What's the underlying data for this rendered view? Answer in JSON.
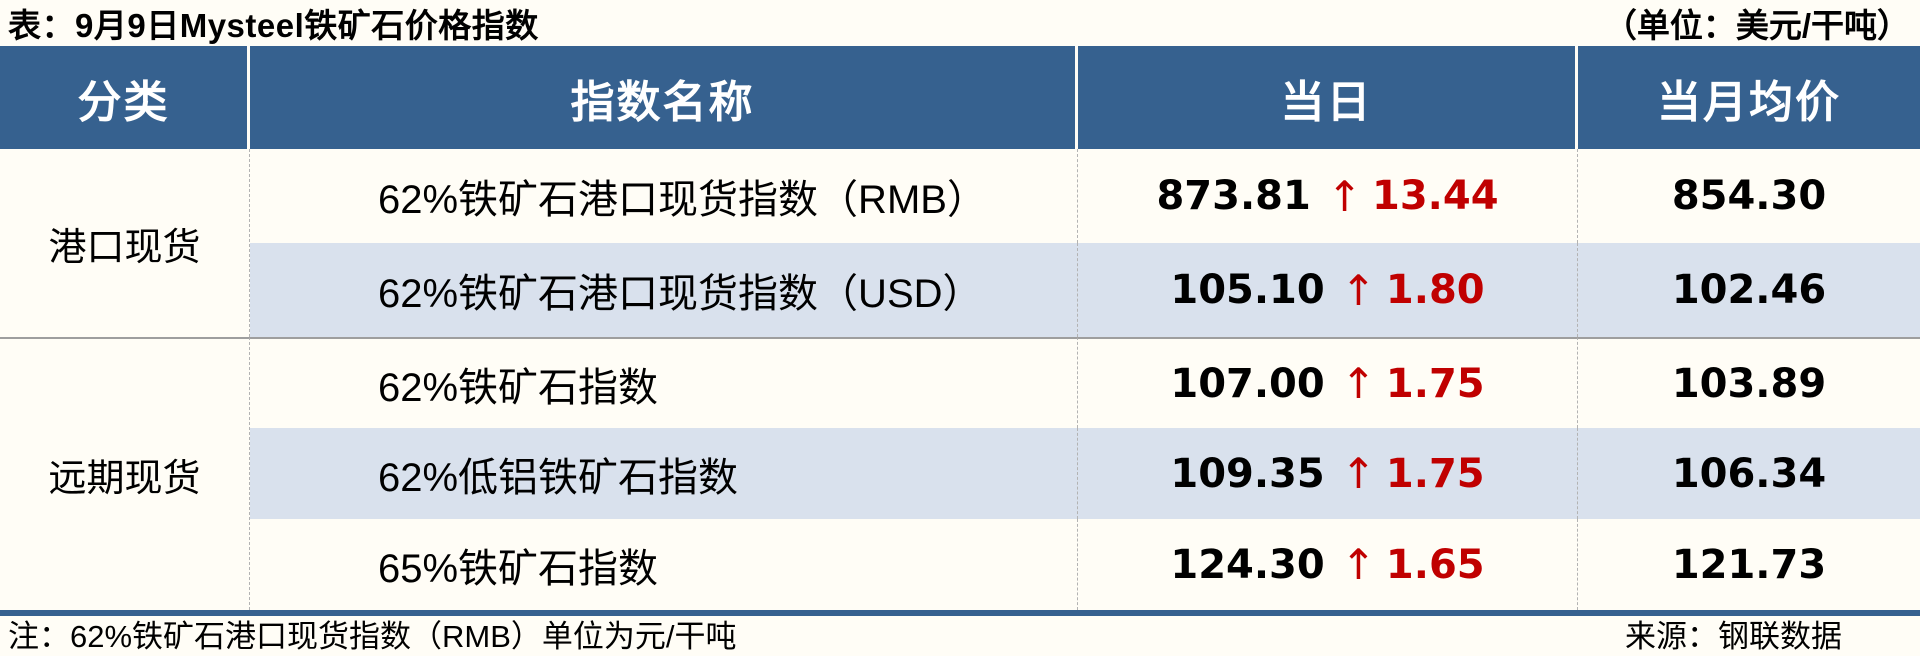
{
  "title": "表：9月9日Mysteel铁矿石价格指数",
  "unit_note": "（单位：美元/干吨）",
  "colors": {
    "header_bg": "#36618f",
    "alt_row_bg": "#d9e1ed",
    "up_red": "#c00000",
    "page_bg": "#fffdf6"
  },
  "table": {
    "headers": [
      "分类",
      "指数名称",
      "当日",
      "当月均价"
    ],
    "groups": [
      {
        "category": "港口现货",
        "rows": [
          {
            "name": "62%铁矿石港口现货指数（RMB）",
            "daily": "873.81",
            "arrow": "↑",
            "change": "13.44",
            "monthly_avg": "854.30"
          },
          {
            "name": "62%铁矿石港口现货指数（USD）",
            "daily": "105.10",
            "arrow": "↑",
            "change": "1.80",
            "monthly_avg": "102.46"
          }
        ]
      },
      {
        "category": "远期现货",
        "rows": [
          {
            "name": "62%铁矿石指数",
            "daily": "107.00",
            "arrow": "↑",
            "change": "1.75",
            "monthly_avg": "103.89"
          },
          {
            "name": "62%低铝铁矿石指数",
            "daily": "109.35",
            "arrow": "↑",
            "change": "1.75",
            "monthly_avg": "106.34"
          },
          {
            "name": "65%铁矿石指数",
            "daily": "124.30",
            "arrow": "↑",
            "change": "1.65",
            "monthly_avg": "121.73"
          }
        ]
      }
    ]
  },
  "footer": {
    "note": "注：62%铁矿石港口现货指数（RMB）单位为元/干吨",
    "source": "来源：钢联数据"
  }
}
